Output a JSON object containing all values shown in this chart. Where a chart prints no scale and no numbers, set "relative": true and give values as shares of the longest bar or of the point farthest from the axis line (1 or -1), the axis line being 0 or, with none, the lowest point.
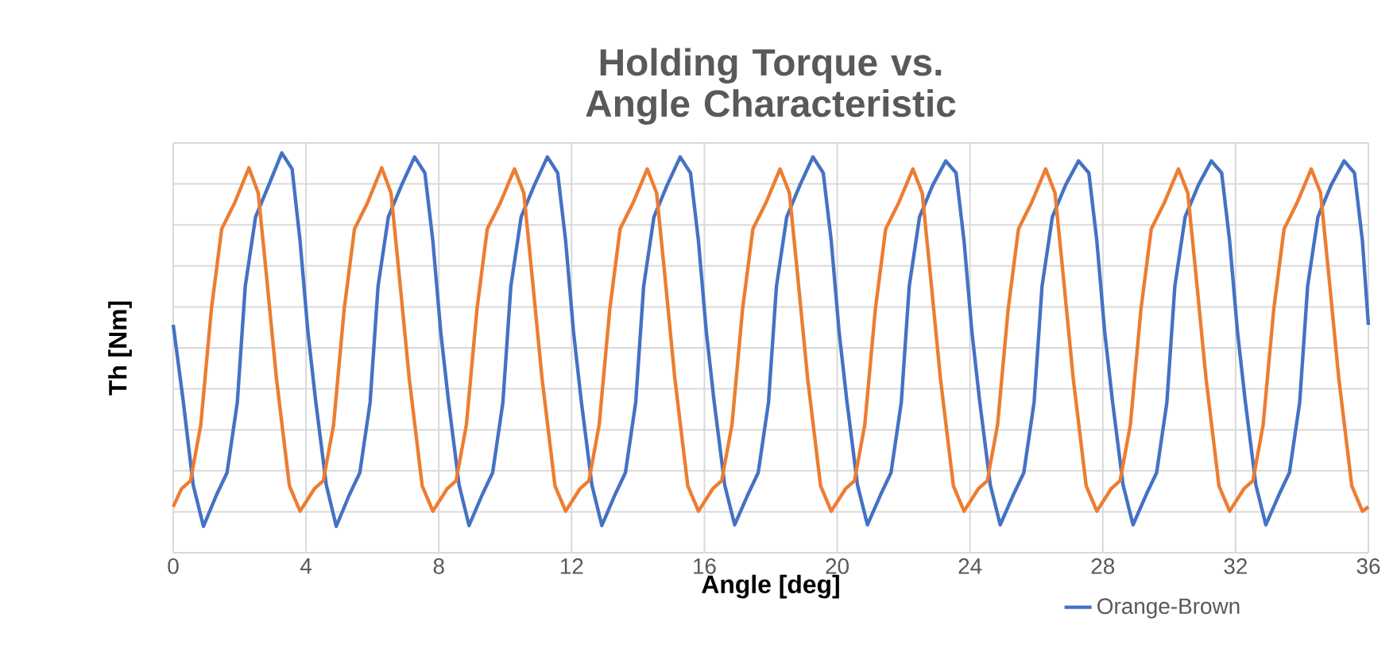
{
  "chart_data": {
    "type": "line",
    "title": "Holding Torque vs. Angle Characteristic",
    "xlabel": "Angle [deg]",
    "ylabel": "Th [Nm]",
    "relative": true,
    "xlim": [
      0,
      36
    ],
    "xticks": [
      0,
      4,
      8,
      12,
      16,
      20,
      24,
      28,
      32,
      36
    ],
    "grid": true,
    "legend": "bottom",
    "marker": "none",
    "line_style": "solid",
    "series": [
      {
        "name": "Orange-Brown",
        "color": "#4472c4",
        "x": [
          0,
          0.3,
          0.6,
          0.91,
          1.3,
          1.62,
          1.93,
          2.17,
          2.48,
          2.88,
          3.27,
          3.58,
          3.82,
          4.06,
          4.29,
          4.61,
          4.91,
          5.3,
          5.62,
          5.93,
          6.17,
          6.48,
          6.88,
          7.27,
          7.58,
          7.82,
          8.06,
          8.29,
          8.61,
          8.91,
          9.3,
          9.62,
          9.93,
          10.17,
          10.48,
          10.88,
          11.27,
          11.58,
          11.82,
          12.06,
          12.29,
          12.61,
          12.91,
          13.3,
          13.62,
          13.93,
          14.17,
          14.48,
          14.88,
          15.27,
          15.58,
          15.82,
          16.06,
          16.29,
          16.61,
          16.91,
          17.3,
          17.62,
          17.93,
          18.17,
          18.48,
          18.88,
          19.27,
          19.58,
          19.82,
          20.06,
          20.29,
          20.61,
          20.91,
          21.3,
          21.62,
          21.93,
          22.17,
          22.48,
          22.88,
          23.27,
          23.58,
          23.82,
          24.06,
          24.29,
          24.61,
          24.91,
          25.3,
          25.62,
          25.93,
          26.17,
          26.48,
          26.88,
          27.27,
          27.58,
          27.82,
          28.06,
          28.29,
          28.61,
          28.91,
          29.3,
          29.62,
          29.93,
          30.17,
          30.48,
          30.88,
          31.27,
          31.58,
          31.82,
          32.06,
          32.29,
          32.61,
          32.91,
          33.3,
          33.62,
          33.93,
          34.17,
          34.48,
          34.88,
          35.27,
          35.58,
          35.82,
          36
        ],
        "values": [
          0.57,
          0.38,
          0.17,
          0.066,
          0.144,
          0.2,
          0.376,
          0.667,
          0.84,
          0.92,
          1.0,
          0.96,
          0.78,
          0.55,
          0.38,
          0.17,
          0.066,
          0.144,
          0.2,
          0.376,
          0.667,
          0.84,
          0.92,
          0.99,
          0.95,
          0.78,
          0.55,
          0.38,
          0.17,
          0.068,
          0.144,
          0.2,
          0.376,
          0.667,
          0.84,
          0.92,
          0.99,
          0.95,
          0.78,
          0.55,
          0.38,
          0.17,
          0.068,
          0.144,
          0.2,
          0.376,
          0.667,
          0.84,
          0.92,
          0.99,
          0.95,
          0.78,
          0.55,
          0.38,
          0.17,
          0.07,
          0.144,
          0.2,
          0.376,
          0.667,
          0.84,
          0.92,
          0.99,
          0.95,
          0.78,
          0.55,
          0.38,
          0.17,
          0.07,
          0.144,
          0.2,
          0.376,
          0.667,
          0.84,
          0.92,
          0.98,
          0.95,
          0.78,
          0.55,
          0.38,
          0.17,
          0.07,
          0.144,
          0.2,
          0.376,
          0.667,
          0.84,
          0.92,
          0.98,
          0.95,
          0.78,
          0.55,
          0.38,
          0.17,
          0.07,
          0.144,
          0.2,
          0.376,
          0.667,
          0.84,
          0.92,
          0.98,
          0.95,
          0.78,
          0.55,
          0.38,
          0.17,
          0.07,
          0.144,
          0.2,
          0.376,
          0.667,
          0.84,
          0.92,
          0.98,
          0.95,
          0.78,
          0.57
        ]
      },
      {
        "color": "#ed7d31",
        "x": [
          0,
          0.25,
          0.52,
          0.83,
          1.15,
          1.46,
          1.85,
          2.28,
          2.56,
          2.8,
          3.11,
          3.5,
          3.82,
          4.25,
          4.52,
          4.83,
          5.15,
          5.46,
          5.85,
          6.28,
          6.56,
          6.8,
          7.11,
          7.5,
          7.82,
          8.25,
          8.52,
          8.83,
          9.15,
          9.46,
          9.85,
          10.28,
          10.56,
          10.8,
          11.11,
          11.5,
          11.82,
          12.25,
          12.52,
          12.83,
          13.15,
          13.46,
          13.85,
          14.28,
          14.56,
          14.8,
          15.11,
          15.5,
          15.82,
          16.25,
          16.52,
          16.83,
          17.15,
          17.46,
          17.85,
          18.28,
          18.56,
          18.8,
          19.11,
          19.5,
          19.82,
          20.25,
          20.52,
          20.83,
          21.15,
          21.46,
          21.85,
          22.28,
          22.56,
          22.8,
          23.11,
          23.5,
          23.82,
          24.25,
          24.52,
          24.83,
          25.15,
          25.46,
          25.85,
          26.28,
          26.56,
          26.8,
          27.11,
          27.5,
          27.82,
          28.25,
          28.52,
          28.83,
          29.15,
          29.46,
          29.85,
          30.28,
          30.56,
          30.8,
          31.11,
          31.5,
          31.82,
          32.25,
          32.52,
          32.83,
          33.15,
          33.46,
          33.85,
          34.28,
          34.56,
          34.8,
          35.11,
          35.5,
          35.82,
          36
        ],
        "values": [
          0.115,
          0.16,
          0.18,
          0.32,
          0.61,
          0.81,
          0.875,
          0.963,
          0.9,
          0.7,
          0.435,
          0.167,
          0.104,
          0.16,
          0.18,
          0.32,
          0.61,
          0.81,
          0.875,
          0.963,
          0.9,
          0.7,
          0.435,
          0.167,
          0.104,
          0.16,
          0.18,
          0.32,
          0.61,
          0.81,
          0.875,
          0.96,
          0.9,
          0.7,
          0.435,
          0.167,
          0.104,
          0.16,
          0.18,
          0.32,
          0.61,
          0.81,
          0.875,
          0.96,
          0.9,
          0.7,
          0.435,
          0.167,
          0.104,
          0.16,
          0.18,
          0.32,
          0.61,
          0.81,
          0.875,
          0.96,
          0.9,
          0.7,
          0.435,
          0.167,
          0.104,
          0.16,
          0.18,
          0.32,
          0.61,
          0.81,
          0.875,
          0.96,
          0.9,
          0.7,
          0.435,
          0.167,
          0.104,
          0.16,
          0.18,
          0.32,
          0.61,
          0.81,
          0.875,
          0.96,
          0.9,
          0.7,
          0.435,
          0.167,
          0.104,
          0.16,
          0.18,
          0.32,
          0.61,
          0.81,
          0.875,
          0.96,
          0.9,
          0.7,
          0.435,
          0.167,
          0.104,
          0.16,
          0.18,
          0.32,
          0.61,
          0.81,
          0.875,
          0.96,
          0.9,
          0.7,
          0.435,
          0.167,
          0.104,
          0.115
        ]
      }
    ]
  }
}
